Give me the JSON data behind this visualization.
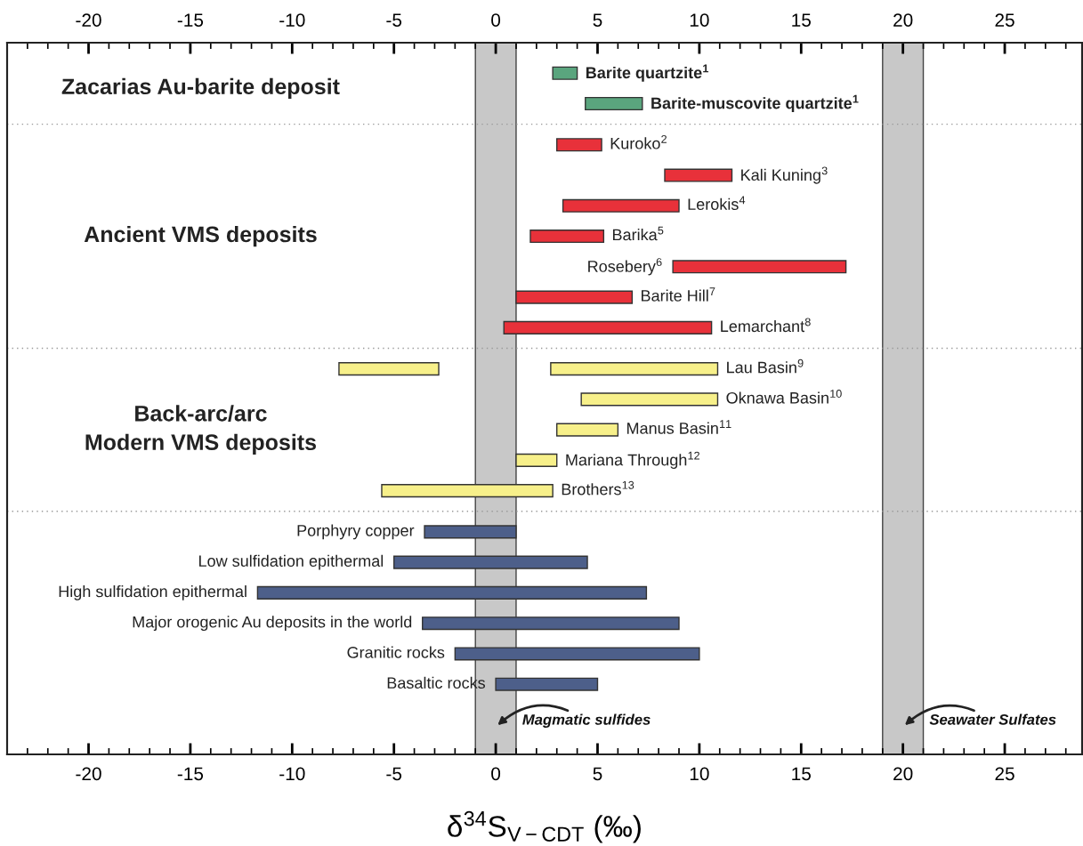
{
  "chart_data": {
    "type": "bar",
    "orientation": "horizontal",
    "xlabel": "δ$^{34}$S$_{V−CDT}$ (‰)",
    "categories": [
      "Barite quartzite$^{1}$",
      "Barite-muscovite quartzite$^{1}$",
      "Kuroko$^{2}$",
      "Kali Kuning$^{3}$",
      "Lerokis$^{4}$",
      "Barika$^{5}$",
      "Rosebery$^{6}$",
      "Barite Hill$^{7}$",
      "Lemarchant$^{8}$",
      "Lau Basin$^{9}$",
      "Oknawa Basin$^{10}$",
      "Manus Basin$^{11}$",
      "Mariana Through$^{12}$",
      "Brothers$^{13}$",
      "Porphyry copper",
      "Low sulfidation epithermal",
      "High sulfidation epithermal",
      "Major orogenic Au deposits in the world",
      "Granitic rocks",
      "Basaltic rocks"
    ],
    "series": [
      {
        "color": "#5aa57e",
        "base": [
          2.8,
          4.4,
          null,
          null,
          null,
          null,
          null,
          null,
          null,
          null,
          null,
          null,
          null,
          null,
          null,
          null,
          null,
          null,
          null,
          null
        ],
        "values": [
          1.2,
          2.8,
          null,
          null,
          null,
          null,
          null,
          null,
          null,
          null,
          null,
          null,
          null,
          null,
          null,
          null,
          null,
          null,
          null,
          null
        ]
      },
      {
        "color": "#e8313a",
        "base": [
          null,
          null,
          3.0,
          8.3,
          3.3,
          1.7,
          8.7,
          1.0,
          0.4,
          null,
          null,
          null,
          null,
          null,
          null,
          null,
          null,
          null,
          null,
          null
        ],
        "values": [
          null,
          null,
          2.2,
          3.3,
          5.7,
          3.6,
          8.5,
          5.7,
          10.2,
          null,
          null,
          null,
          null,
          null,
          null,
          null,
          null,
          null,
          null,
          null
        ]
      },
      {
        "color": "#f7f08a",
        "base": [
          null,
          null,
          null,
          null,
          null,
          null,
          null,
          null,
          null,
          2.7,
          4.2,
          3.0,
          1.0,
          -5.6,
          null,
          null,
          null,
          null,
          null,
          null
        ],
        "values": [
          null,
          null,
          null,
          null,
          null,
          null,
          null,
          null,
          null,
          8.2,
          6.7,
          3.0,
          2.0,
          8.4,
          null,
          null,
          null,
          null,
          null,
          null
        ]
      },
      {
        "color": "#f7f08a",
        "base": [
          null,
          null,
          null,
          null,
          null,
          null,
          null,
          null,
          null,
          -7.7,
          null,
          null,
          null,
          null,
          null,
          null,
          null,
          null,
          null,
          null
        ],
        "values": [
          null,
          null,
          null,
          null,
          null,
          null,
          null,
          null,
          null,
          4.9,
          null,
          null,
          null,
          null,
          null,
          null,
          null,
          null,
          null,
          null
        ]
      },
      {
        "color": "#4d5f8a",
        "base": [
          null,
          null,
          null,
          null,
          null,
          null,
          null,
          null,
          null,
          null,
          null,
          null,
          null,
          null,
          -3.5,
          -5.0,
          -11.7,
          -3.6,
          -2.0,
          0.0
        ],
        "values": [
          null,
          null,
          null,
          null,
          null,
          null,
          null,
          null,
          null,
          null,
          null,
          null,
          null,
          null,
          4.5,
          9.5,
          19.1,
          12.6,
          12.0,
          5.0
        ]
      }
    ],
    "xlim": [
      -24,
      28.8
    ],
    "xticks": [
      -20,
      -15,
      -10,
      -5,
      0,
      5,
      10,
      15,
      20,
      25
    ],
    "x2lim": [
      -24,
      28.8
    ],
    "x2ticks": [
      -20,
      -15,
      -10,
      -5,
      0,
      5,
      10,
      15,
      20,
      25
    ],
    "bands": [
      {
        "axis": "x",
        "from": -1,
        "to": 1,
        "label": "Magmatic sulfides",
        "color": "#c8c8c8"
      },
      {
        "axis": "x",
        "from": 19,
        "to": 21,
        "label": "Seawater Sulfates",
        "color": "#c8c8c8"
      }
    ],
    "annotations": [
      "Zacarias Au-barite deposit",
      "Ancient VMS deposits",
      "Back-arc/arc\nModern VMS deposits"
    ],
    "grid": false,
    "legend": false
  }
}
